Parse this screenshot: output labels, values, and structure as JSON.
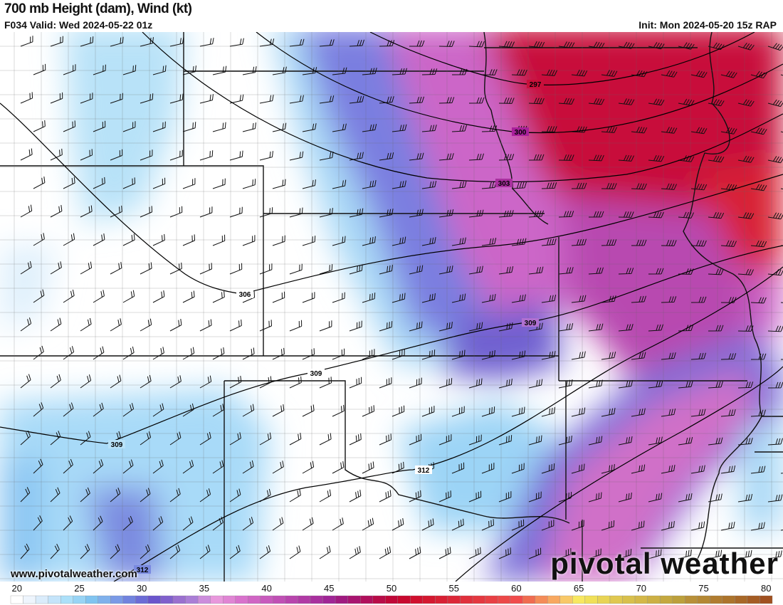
{
  "header": {
    "title": "700 mb Height (dam), Wind (kt)",
    "valid": "F034 Valid: Wed 2024-05-22 01z",
    "init": "Init: Mon 2024-05-20 15z RAP"
  },
  "map": {
    "field": "700 mb wind speed (kt) shaded, height contours (dam), wind barbs",
    "contour_labels": [
      "297",
      "300",
      "303",
      "306",
      "309",
      "309",
      "309",
      "312",
      "312"
    ]
  },
  "watermark": {
    "url": "www.pivotalweather.com",
    "logo": "pivotal weather"
  },
  "colorbar": {
    "min": 20,
    "max": 80,
    "tick_labels": [
      "20",
      "25",
      "30",
      "35",
      "40",
      "45",
      "50",
      "55",
      "60",
      "65",
      "70",
      "75",
      "80"
    ],
    "colors": [
      "#ffffff",
      "#eef5fd",
      "#daecfb",
      "#c4e4fa",
      "#ace0f9",
      "#98d4f5",
      "#80c4f0",
      "#7fb1ec",
      "#7a9ae6",
      "#7183de",
      "#6c6cd6",
      "#6a55cc",
      "#8060cc",
      "#9a70cf",
      "#aa7ed6",
      "#cc8ddc",
      "#e898dc",
      "#e085d4",
      "#d872cc",
      "#d065c4",
      "#c85abd",
      "#c050b5",
      "#b845ad",
      "#b03aa5",
      "#a8309e",
      "#a02596",
      "#a01a80",
      "#a81470",
      "#b0105c",
      "#b80c48",
      "#c00838",
      "#c8082e",
      "#d0102e",
      "#d41830",
      "#d82034",
      "#dc2838",
      "#e0303c",
      "#e43840",
      "#e84044",
      "#ec4848",
      "#f04c4c",
      "#f06c50",
      "#f48c58",
      "#f8a860",
      "#f8c868",
      "#f8e860",
      "#f0e058",
      "#e8d454",
      "#e0c850",
      "#d8c04c",
      "#d4b848",
      "#ccb044",
      "#c4a840",
      "#bca03c",
      "#b89038",
      "#b48834",
      "#b07c30",
      "#ac742c",
      "#a86828",
      "#a45c24",
      "#a05020"
    ]
  }
}
